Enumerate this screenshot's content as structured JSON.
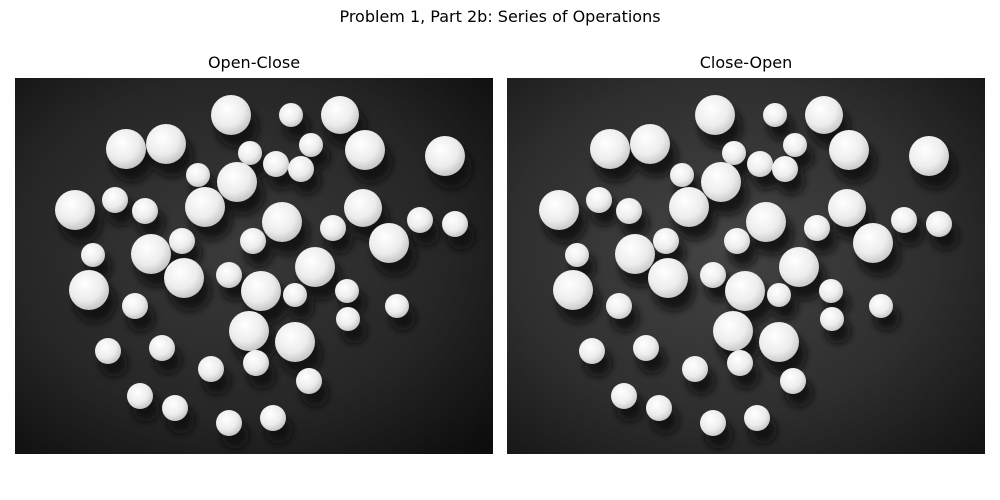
{
  "figure": {
    "suptitle": "Problem 1, Part 2b: Series of Operations"
  },
  "panels": [
    {
      "title": "Open-Close",
      "image": "grayscale-morphology-blobs-open-close"
    },
    {
      "title": "Close-Open",
      "image": "grayscale-morphology-blobs-close-open"
    }
  ]
}
